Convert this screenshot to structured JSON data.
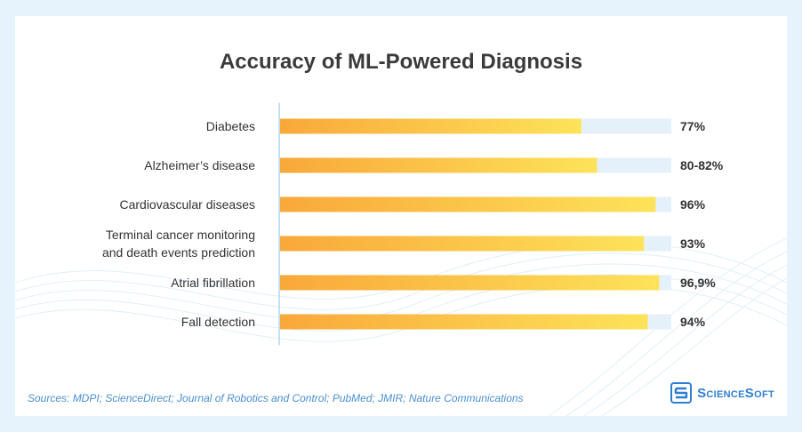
{
  "chart_data": {
    "type": "bar",
    "orientation": "horizontal",
    "title": "Accuracy of ML-Powered Diagnosis",
    "categories": [
      [
        "Diabetes"
      ],
      [
        "Alzheimer’s disease"
      ],
      [
        "Cardiovascular diseases"
      ],
      [
        "Terminal cancer monitoring",
        "and death events prediction"
      ],
      [
        "Atrial fibrillation"
      ],
      [
        "Fall detection"
      ]
    ],
    "values": [
      77,
      81,
      96,
      93,
      96.9,
      94
    ],
    "value_labels": [
      "77%",
      "80-82%",
      "96%",
      "93%",
      "96,9%",
      "94%"
    ],
    "xlim": [
      0,
      100
    ],
    "grid": false,
    "legend": "none",
    "colors": {
      "bar_start": "#f9a83a",
      "bar_end": "#fde35a",
      "track": "#e4f1fb",
      "axis": "#c5dff3"
    }
  },
  "footer": {
    "sources": "Sources: MDPI; ScienceDirect; Journal of Robotics and Control; PubMed; JMIR; Nature Communications"
  },
  "brand": {
    "name": "ScienceSoft",
    "logo_icon": "sciencesoft-logo-icon"
  }
}
